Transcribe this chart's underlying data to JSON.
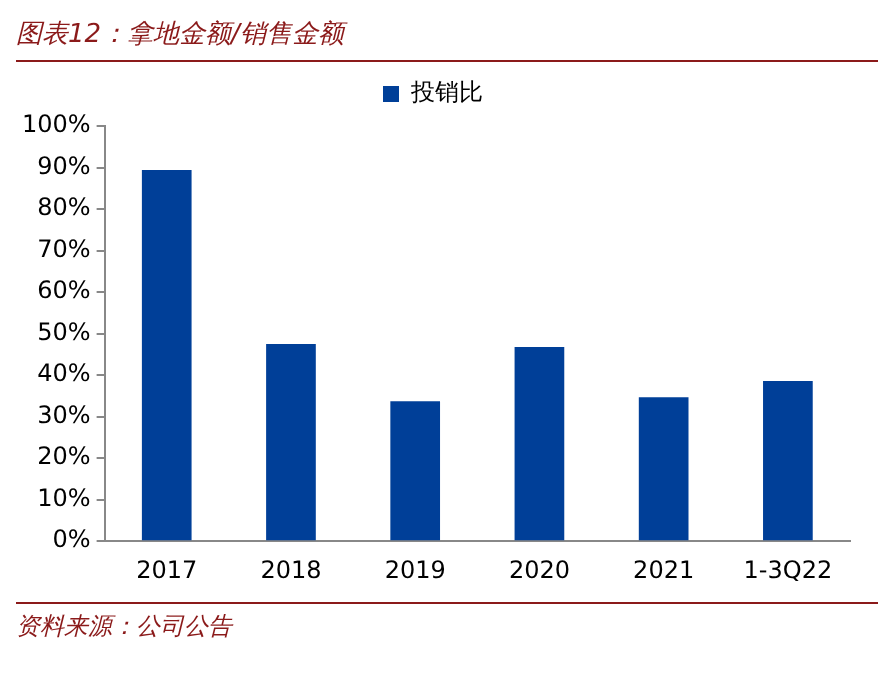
{
  "chart_data": {
    "type": "bar",
    "title": "图表12：拿地金额/销售金额",
    "annotations": [
      "资料来源：公司公告"
    ],
    "categories": [
      "2017",
      "2018",
      "2019",
      "2020",
      "2021",
      "1-3Q22"
    ],
    "series": [
      {
        "name": "投销比",
        "color": "#003f98",
        "values": [
          89.4,
          47.5,
          33.7,
          46.8,
          34.7,
          38.6
        ]
      }
    ],
    "ylim": [
      0,
      100
    ],
    "yticks": [
      {
        "value": 0,
        "label": "0%"
      },
      {
        "value": 10,
        "label": "10%"
      },
      {
        "value": 20,
        "label": "20%"
      },
      {
        "value": 30,
        "label": "30%"
      },
      {
        "value": 40,
        "label": "40%"
      },
      {
        "value": 50,
        "label": "50%"
      },
      {
        "value": 60,
        "label": "60%"
      },
      {
        "value": 70,
        "label": "70%"
      },
      {
        "value": 80,
        "label": "80%"
      },
      {
        "value": 90,
        "label": "90%"
      },
      {
        "value": 100,
        "label": "100%"
      }
    ],
    "grid": false,
    "legend": "top"
  }
}
